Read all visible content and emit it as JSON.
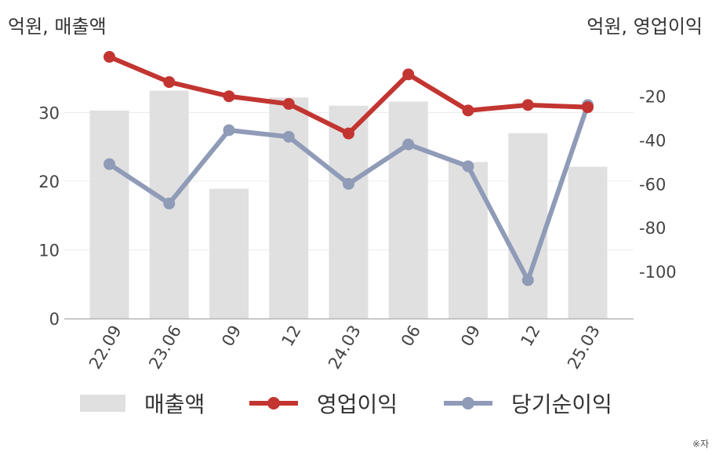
{
  "unit_left": "억원, 매출액",
  "unit_right": "억원, 영업이익",
  "note": "※자",
  "chart_data": {
    "type": "bar+line",
    "categories": [
      "22.09",
      "23.06",
      "09",
      "12",
      "24.03",
      "06",
      "09",
      "12",
      "25.03"
    ],
    "left_axis": {
      "ylim": [
        0,
        38
      ],
      "ticks": [
        0,
        10,
        20,
        30
      ],
      "tick_labels": [
        "0",
        "10",
        "20",
        "30"
      ]
    },
    "right_axis": {
      "ylim": [
        -120,
        25
      ],
      "ticks": [
        -20,
        -40,
        -60,
        -80,
        -100
      ],
      "tick_labels": [
        "-20",
        "-40",
        "-60",
        "-80",
        "-100"
      ]
    },
    "series": [
      {
        "name": "매출액",
        "type": "bar",
        "axis": "left",
        "color": "#e0e0e0",
        "values": [
          30.3,
          33.2,
          18.9,
          32.2,
          31.0,
          31.6,
          22.8,
          27.0,
          22.1
        ]
      },
      {
        "name": "영업이익",
        "type": "line",
        "axis": "right",
        "color": "#c23531",
        "values": [
          -2,
          -13.5,
          -20,
          -23.5,
          -37,
          -10,
          -26.5,
          -24,
          -25
        ]
      },
      {
        "name": "당기순이익",
        "type": "line",
        "axis": "right",
        "color": "#8f9bb7",
        "values": [
          -51,
          -69,
          -35.5,
          -38.5,
          -60,
          -42,
          -52,
          -104,
          -24
        ]
      }
    ],
    "grid": true,
    "legend_position": "bottom"
  },
  "legend": [
    {
      "label": "매출액",
      "color": "#e0e0e0",
      "kind": "bar"
    },
    {
      "label": "영업이익",
      "color": "#c23531",
      "kind": "line"
    },
    {
      "label": "당기순이익",
      "color": "#8f9bb7",
      "kind": "line"
    }
  ]
}
